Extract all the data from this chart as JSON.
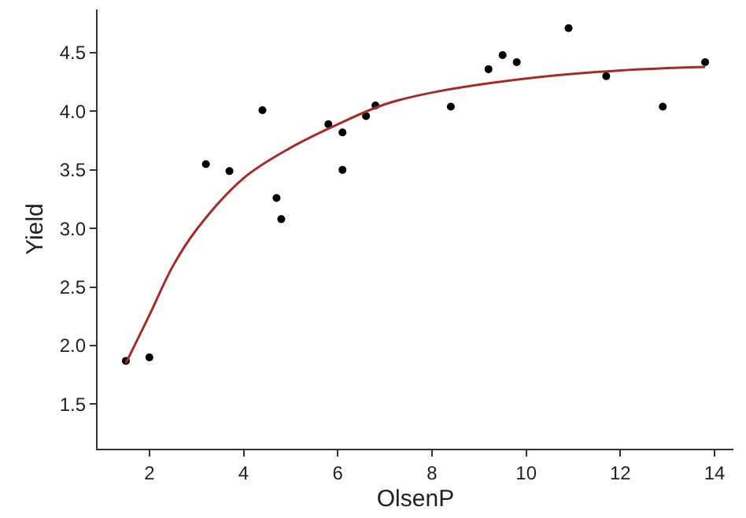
{
  "chart_data": {
    "type": "scatter",
    "xlabel": "OlsenP",
    "ylabel": "Yield",
    "xlim": [
      0.9,
      14.4
    ],
    "ylim": [
      1.12,
      4.87
    ],
    "xticks": [
      2,
      4,
      6,
      8,
      10,
      12,
      14
    ],
    "yticks": [
      1.5,
      {
        "value": 2,
        "label": "2.0"
      },
      2.5,
      {
        "value": 3,
        "label": "3.0"
      },
      3.5,
      {
        "value": 4,
        "label": "4.0"
      },
      4.5
    ],
    "marker": "circle",
    "series": [
      {
        "color": "#000000",
        "x": [
          1.5,
          2.0,
          3.2,
          3.7,
          4.4,
          4.7,
          4.8,
          5.8,
          6.1,
          6.1,
          6.6,
          6.8,
          8.4,
          9.2,
          9.5,
          9.8,
          10.9,
          11.7,
          12.9,
          13.8
        ],
        "values": [
          1.87,
          1.9,
          3.55,
          3.49,
          4.01,
          3.26,
          3.08,
          3.89,
          3.82,
          3.5,
          3.96,
          4.05,
          4.04,
          4.36,
          4.48,
          4.42,
          4.71,
          4.3,
          4.04,
          4.42
        ]
      },
      {
        "type": "line",
        "color": "#a52a2a",
        "marker": "none",
        "line_style": "solid",
        "x": [
          1.5,
          2.0,
          2.5,
          3.0,
          4.0,
          5.0,
          6.0,
          7.0,
          8.0,
          10.0,
          12.0,
          13.8
        ],
        "values": [
          1.85,
          2.26,
          2.68,
          2.99,
          3.43,
          3.69,
          3.89,
          4.06,
          4.16,
          4.28,
          4.35,
          4.38
        ]
      }
    ]
  }
}
